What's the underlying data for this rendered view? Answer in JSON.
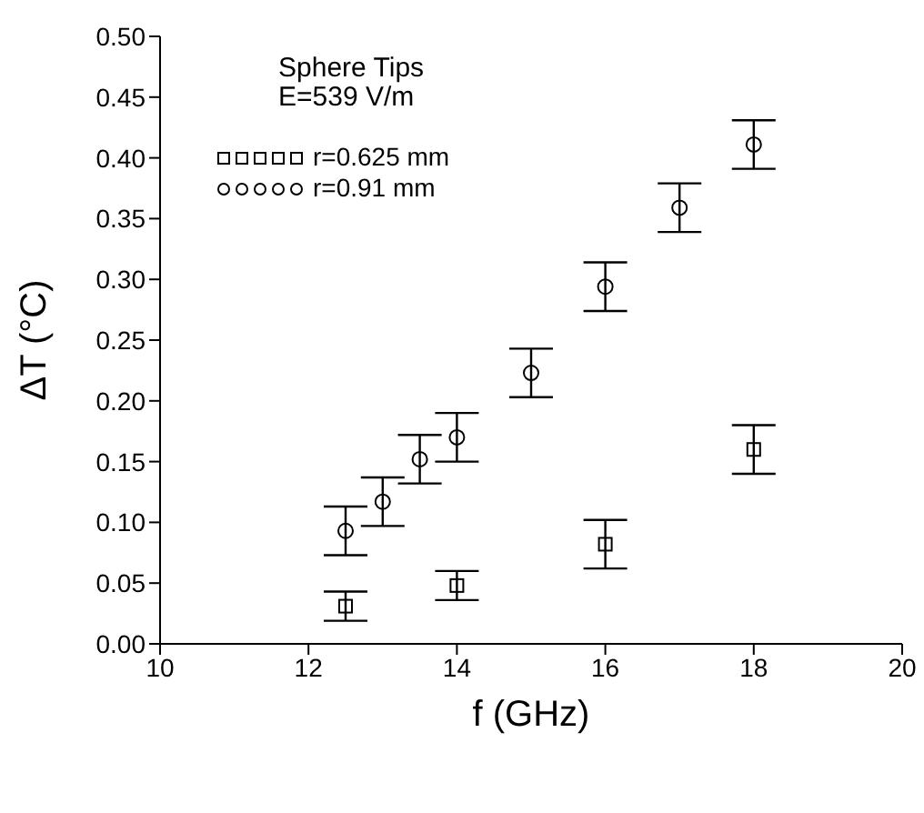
{
  "chart_data": {
    "type": "scatter",
    "xlabel": "f (GHz)",
    "ylabel": "ΔT (°C)",
    "annotations": [
      "Sphere Tips",
      "E=539 V/m"
    ],
    "xlim": [
      10,
      20
    ],
    "xticks": [
      10,
      12,
      14,
      16,
      18,
      20
    ],
    "ylim": [
      0,
      0.5
    ],
    "yticks": [
      {
        "value": 0,
        "label": "0.00"
      },
      {
        "value": 0.05,
        "label": "0.05"
      },
      {
        "value": 0.1,
        "label": "0.10"
      },
      {
        "value": 0.15,
        "label": "0.15"
      },
      {
        "value": 0.2,
        "label": "0.20"
      },
      {
        "value": 0.25,
        "label": "0.25"
      },
      {
        "value": 0.3,
        "label": "0.30"
      },
      {
        "value": 0.35,
        "label": "0.35"
      },
      {
        "value": 0.4,
        "label": "0.40"
      },
      {
        "value": 0.45,
        "label": "0.45"
      },
      {
        "value": 0.5,
        "label": "0.50"
      }
    ],
    "legend": "top left",
    "grid": false,
    "series": [
      {
        "name": "r=0.625 mm",
        "color": "#000000",
        "marker": "square",
        "x": [
          12.5,
          14,
          16,
          18
        ],
        "values": [
          0.031,
          0.048,
          0.082,
          0.16
        ],
        "errors": [
          0.012,
          0.012,
          0.02,
          0.02
        ]
      },
      {
        "name": "r=0.91 mm",
        "color": "#000000",
        "marker": "circle",
        "x": [
          12.5,
          13,
          13.5,
          14,
          15,
          16,
          17,
          18
        ],
        "values": [
          0.093,
          0.117,
          0.152,
          0.17,
          0.223,
          0.294,
          0.359,
          0.411
        ],
        "errors": [
          0.02,
          0.02,
          0.02,
          0.02,
          0.02,
          0.02,
          0.02,
          0.02
        ]
      }
    ]
  }
}
